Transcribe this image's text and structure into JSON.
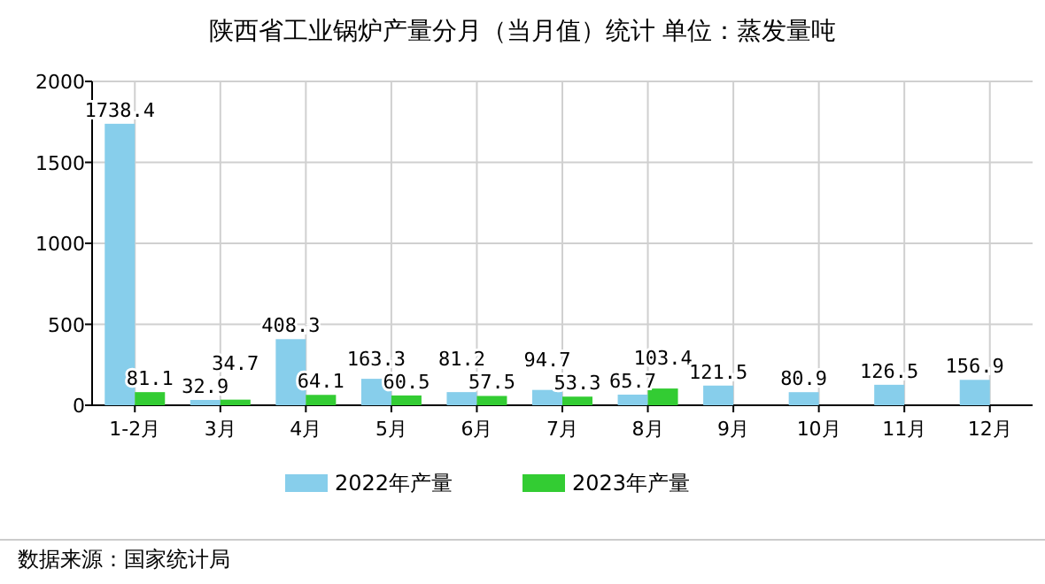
{
  "chart_data": {
    "type": "bar",
    "title": "陕西省工业锅炉产量分月（当月值）统计 单位：蒸发量吨",
    "categories": [
      "1-2月",
      "3月",
      "4月",
      "5月",
      "6月",
      "7月",
      "8月",
      "9月",
      "10月",
      "11月",
      "12月"
    ],
    "series": [
      {
        "name": "2022年产量",
        "color": "#87ceeb",
        "values": [
          1738.4,
          32.9,
          408.3,
          163.3,
          81.2,
          94.7,
          65.7,
          121.5,
          80.9,
          126.5,
          156.9
        ]
      },
      {
        "name": "2023年产量",
        "color": "#33cc33",
        "values": [
          81.1,
          34.7,
          64.1,
          60.5,
          57.5,
          53.3,
          103.4,
          null,
          null,
          null,
          null
        ]
      }
    ],
    "ylim": [
      0,
      2000
    ],
    "yticks": [
      0,
      500,
      1000,
      1500,
      2000
    ],
    "grid": true,
    "legend": "bottom",
    "data_labels": true,
    "annotations": [
      "数据来源：国家统计局"
    ]
  }
}
